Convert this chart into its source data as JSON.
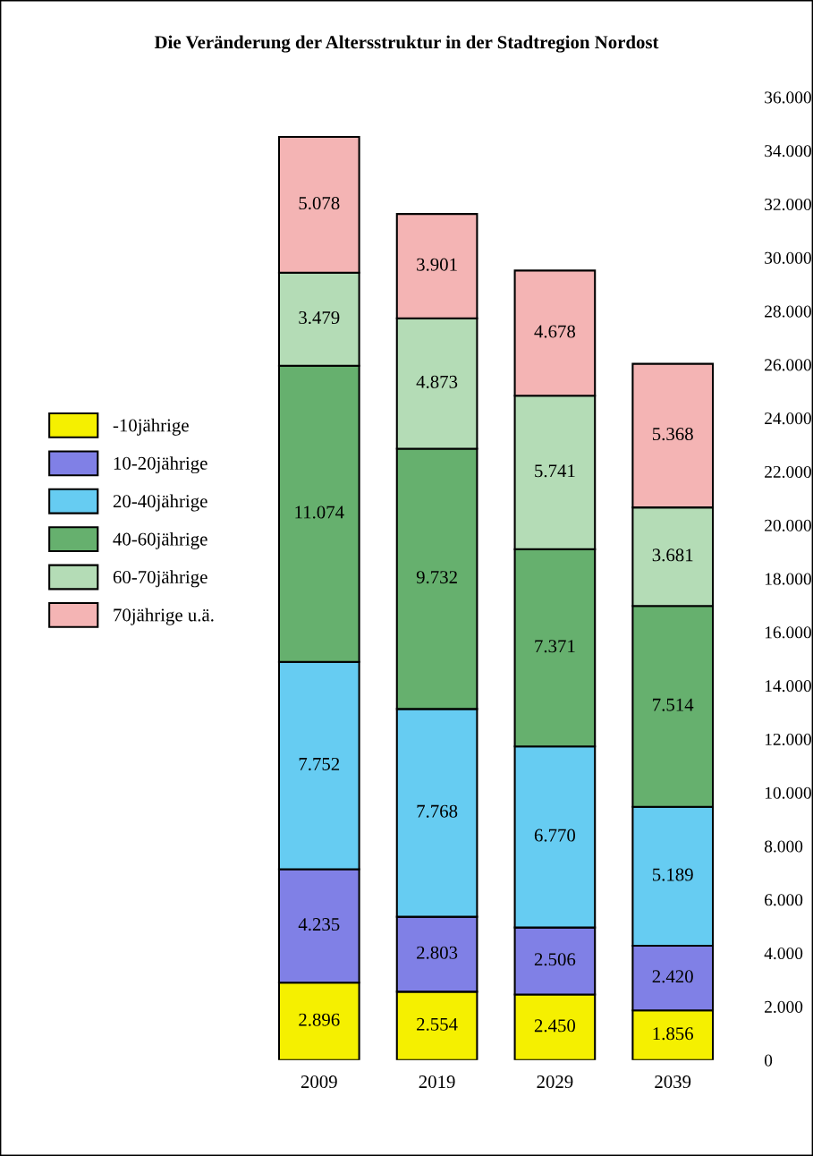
{
  "chart_data": {
    "type": "bar",
    "title": "Die Veränderung der Altersstruktur in der Stadtregion Nordost",
    "categories": [
      "2009",
      "2019",
      "2029",
      "2039"
    ],
    "stacked": true,
    "legend": "left",
    "grid": false,
    "ylim": [
      0,
      36000
    ],
    "yticks": [
      0,
      {
        "value": 2000,
        "label": "2.000"
      },
      {
        "value": 4000,
        "label": "4.000"
      },
      {
        "value": 6000,
        "label": "6.000"
      },
      {
        "value": 8000,
        "label": "8.000"
      },
      {
        "value": 10000,
        "label": "10.000"
      },
      {
        "value": 12000,
        "label": "12.000"
      },
      {
        "value": 14000,
        "label": "14.000"
      },
      {
        "value": 16000,
        "label": "16.000"
      },
      {
        "value": 18000,
        "label": "18.000"
      },
      {
        "value": 20000,
        "label": "20.000"
      },
      {
        "value": 22000,
        "label": "22.000"
      },
      {
        "value": 24000,
        "label": "24.000"
      },
      {
        "value": 26000,
        "label": "26.000"
      },
      {
        "value": 28000,
        "label": "28.000"
      },
      {
        "value": 30000,
        "label": "30.000"
      },
      {
        "value": 32000,
        "label": "32.000"
      },
      {
        "value": 34000,
        "label": "34.000"
      },
      {
        "value": 36000,
        "label": "36.000"
      }
    ],
    "series": [
      {
        "name": "-10jährige",
        "color": "#f5f000",
        "values": [
          2896,
          2554,
          2450,
          1856
        ],
        "value_labels": [
          "2.896",
          "2.554",
          "2.450",
          "1.856"
        ]
      },
      {
        "name": "10-20jährige",
        "color": "#8080e6",
        "values": [
          4235,
          2803,
          2506,
          2420
        ],
        "value_labels": [
          "4.235",
          "2.803",
          "2.506",
          "2.420"
        ]
      },
      {
        "name": "20-40jährige",
        "color": "#66ccf2",
        "values": [
          7752,
          7768,
          6770,
          5189
        ],
        "value_labels": [
          "7.752",
          "7.768",
          "6.770",
          "5.189"
        ]
      },
      {
        "name": "40-60jährige",
        "color": "#66b06e",
        "values": [
          11074,
          9732,
          7371,
          7514
        ],
        "value_labels": [
          "11.074",
          "9.732",
          "7.371",
          "7.514"
        ]
      },
      {
        "name": "60-70jährige",
        "color": "#b4dcb6",
        "values": [
          3479,
          4873,
          5741,
          3681
        ],
        "value_labels": [
          "3.479",
          "4.873",
          "5.741",
          "3.681"
        ]
      },
      {
        "name": "70jährige u.ä.",
        "color": "#f4b4b4",
        "values": [
          5078,
          3901,
          4678,
          5368
        ],
        "value_labels": [
          "5.078",
          "3.901",
          "4.678",
          "5.368"
        ]
      }
    ]
  }
}
